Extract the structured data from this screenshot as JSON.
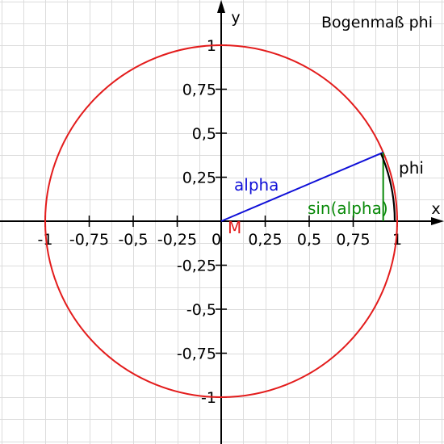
{
  "title": "Bogenmaß phi",
  "axes": {
    "x_label": "x",
    "y_label": "y",
    "xlim": [
      -1.25,
      1.25
    ],
    "ylim": [
      -1.25,
      1.25
    ],
    "grid": true,
    "grid_step": 0.125
  },
  "x_ticks": [
    {
      "value": -1,
      "label": "-1"
    },
    {
      "value": -0.75,
      "label": "-0,75"
    },
    {
      "value": -0.5,
      "label": "-0,5"
    },
    {
      "value": -0.25,
      "label": "-0,25"
    },
    {
      "value": 0,
      "label": "0"
    },
    {
      "value": 0.25,
      "label": "0,25"
    },
    {
      "value": 0.5,
      "label": "0,5"
    },
    {
      "value": 0.75,
      "label": "0,75"
    },
    {
      "value": 1,
      "label": "1"
    }
  ],
  "y_ticks": [
    {
      "value": 1,
      "label": "1"
    },
    {
      "value": 0.75,
      "label": "0,75"
    },
    {
      "value": 0.5,
      "label": "0,5"
    },
    {
      "value": 0.25,
      "label": "0,25"
    },
    {
      "value": -0.25,
      "label": "-0,25"
    },
    {
      "value": -0.5,
      "label": "-0,5"
    },
    {
      "value": -0.75,
      "label": "-0,75"
    },
    {
      "value": -1,
      "label": "-1"
    }
  ],
  "unit_circle": {
    "radius": 1,
    "color": "#e31c1c"
  },
  "center": {
    "label": "M",
    "color": "#e31c1c"
  },
  "angle_alpha_deg": 23,
  "radius_line": {
    "label": "alpha",
    "color": "#1010d8"
  },
  "sine_segment": {
    "label": "sin(alpha)",
    "color": "#0a8a0a"
  },
  "arc": {
    "label": "phi",
    "color": "#000000"
  },
  "colors": {
    "grid": "#dcdcdc",
    "axis": "#000000",
    "background": "#ffffff"
  }
}
